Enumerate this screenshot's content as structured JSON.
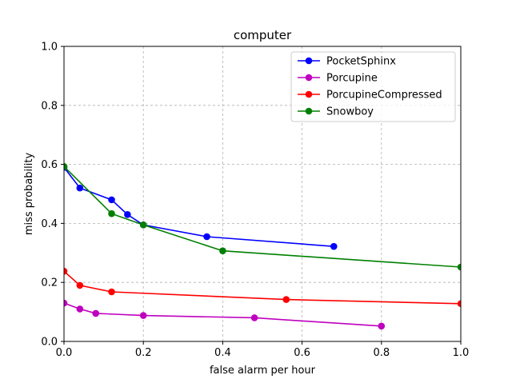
{
  "chart_data": {
    "type": "line",
    "title": "computer",
    "xlabel": "false alarm per hour",
    "ylabel": "miss probability",
    "xlim": [
      0.0,
      1.0
    ],
    "ylim": [
      0.0,
      1.0
    ],
    "xticks": [
      "0.0",
      "0.2",
      "0.4",
      "0.6",
      "0.8",
      "1.0"
    ],
    "yticks": [
      "0.0",
      "0.2",
      "0.4",
      "0.6",
      "0.8",
      "1.0"
    ],
    "grid": true,
    "legend_position": "top-right",
    "series": [
      {
        "name": "PocketSphinx",
        "color": "#0000ff",
        "x": [
          0.0,
          0.04,
          0.12,
          0.16,
          0.2,
          0.36,
          0.68
        ],
        "y": [
          0.59,
          0.52,
          0.48,
          0.43,
          0.395,
          0.355,
          0.322
        ]
      },
      {
        "name": "Porcupine",
        "color": "#bf00bf",
        "x": [
          0.0,
          0.04,
          0.08,
          0.2,
          0.48,
          0.8
        ],
        "y": [
          0.13,
          0.11,
          0.095,
          0.088,
          0.08,
          0.052
        ]
      },
      {
        "name": "PorcupineCompressed",
        "color": "#ff0000",
        "x": [
          0.0,
          0.04,
          0.12,
          0.56,
          1.0
        ],
        "y": [
          0.238,
          0.19,
          0.168,
          0.142,
          0.128
        ]
      },
      {
        "name": "Snowboy",
        "color": "#008000",
        "x": [
          0.0,
          0.12,
          0.2,
          0.4,
          1.0
        ],
        "y": [
          0.593,
          0.433,
          0.395,
          0.307,
          0.252
        ]
      }
    ]
  }
}
